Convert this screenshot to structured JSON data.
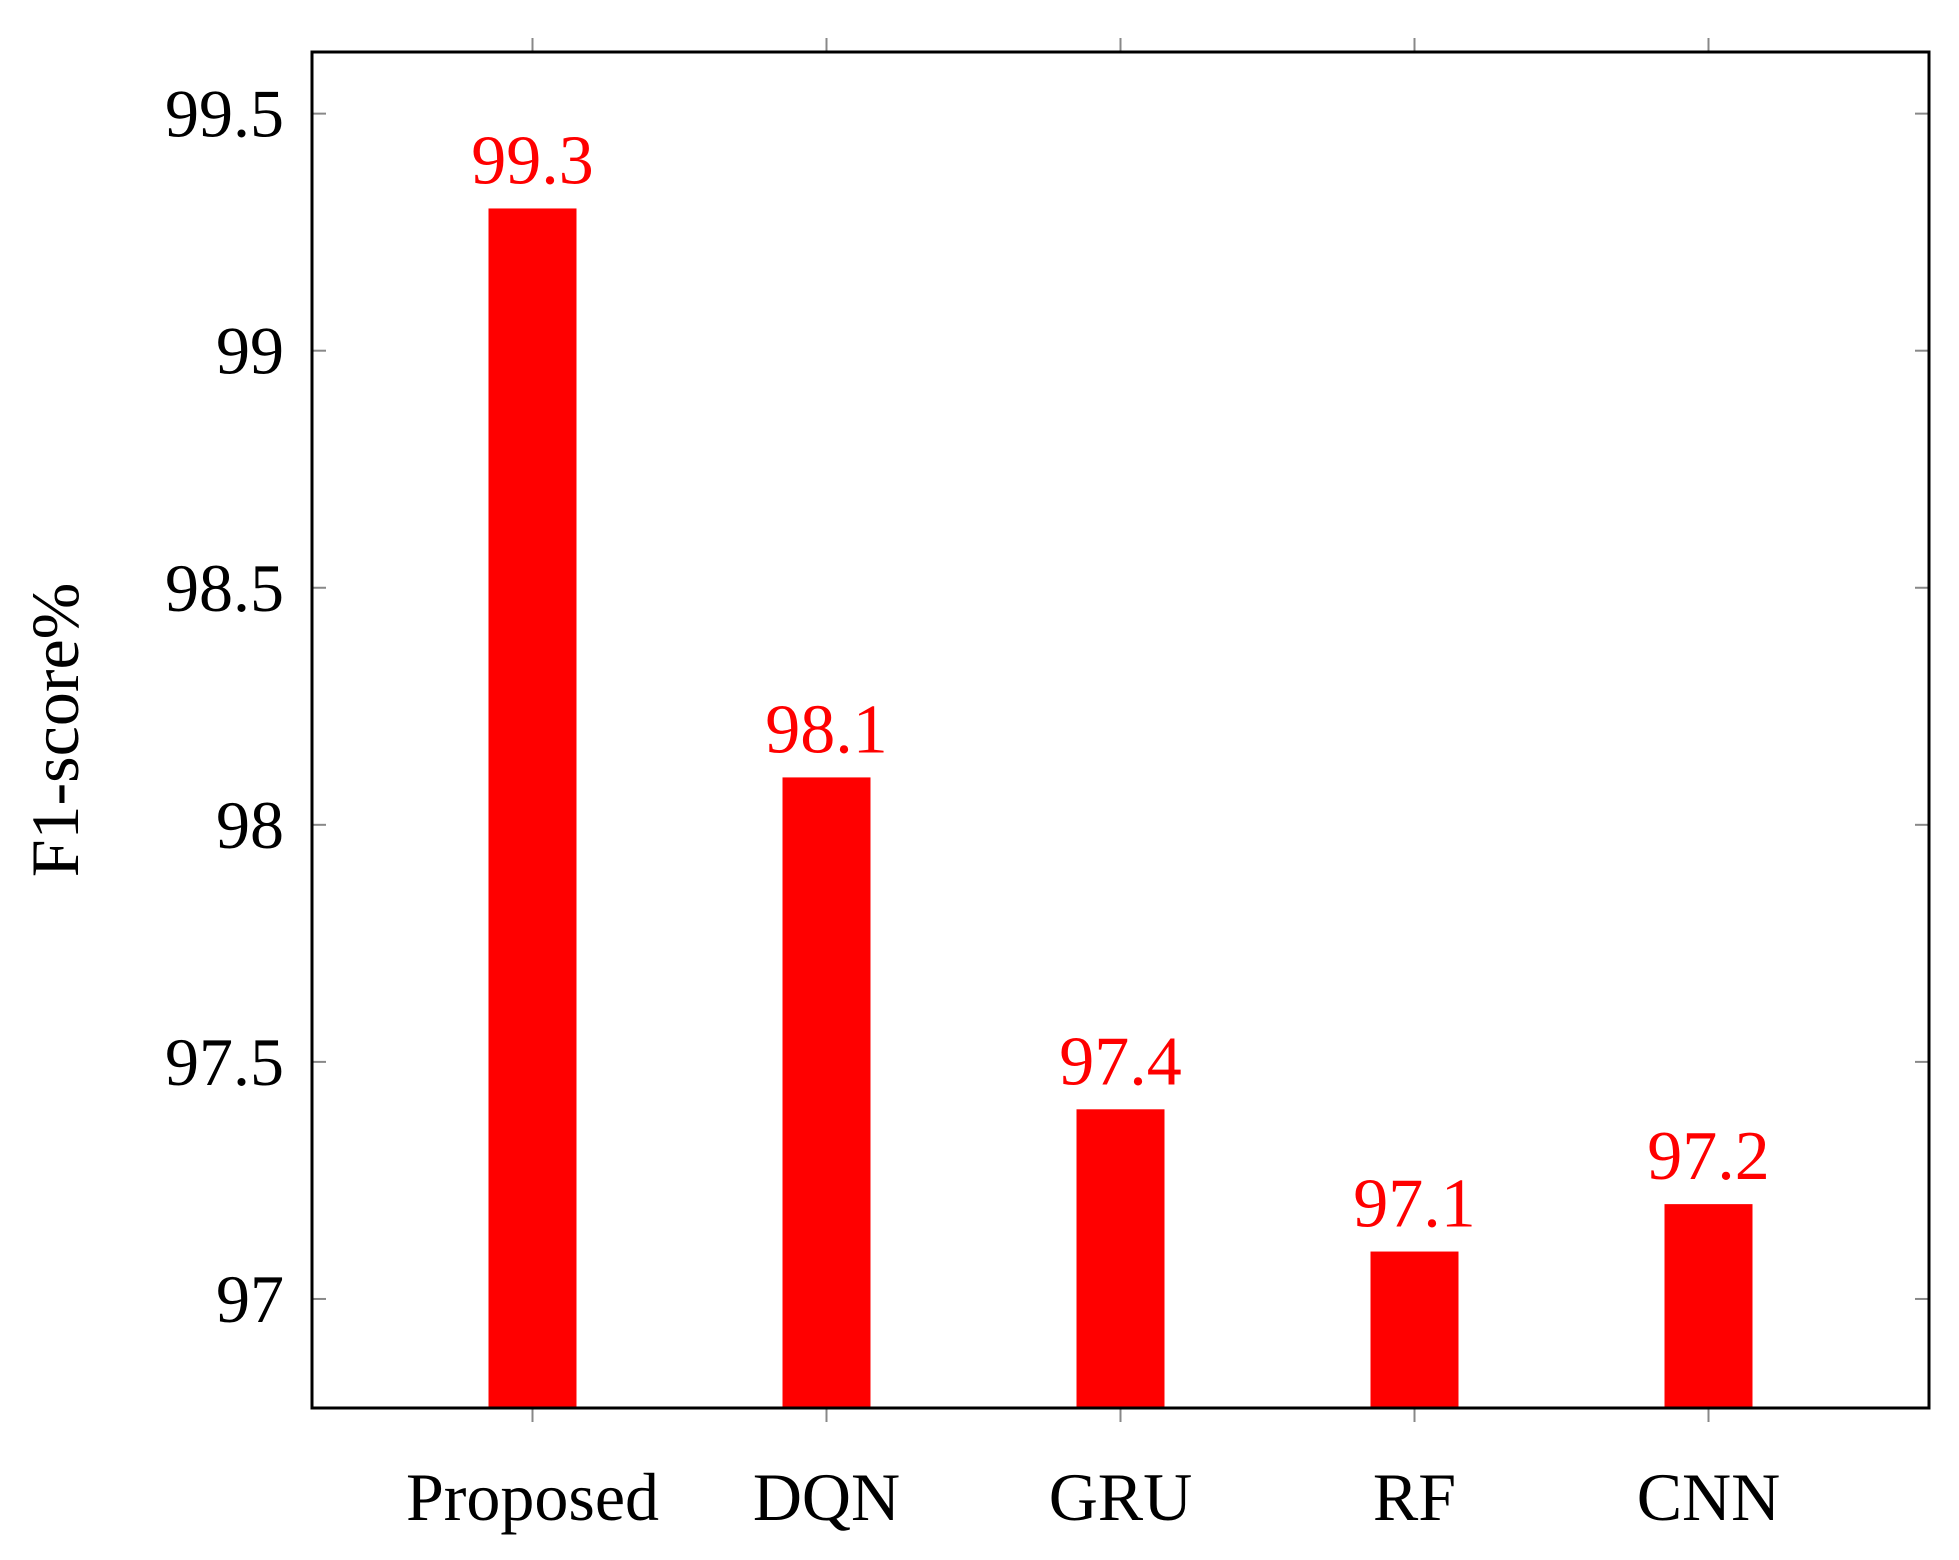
{
  "chart_data": {
    "type": "bar",
    "categories": [
      "Proposed",
      "DQN",
      "GRU",
      "RF",
      "CNN"
    ],
    "values": [
      99.3,
      98.1,
      97.4,
      97.1,
      97.2
    ],
    "value_labels": [
      "99.3",
      "98.1",
      "97.4",
      "97.1",
      "97.2"
    ],
    "title": "",
    "xlabel": "",
    "ylabel": "F1-score%",
    "ylim": [
      96.77,
      99.63
    ],
    "yticks": [
      97,
      97.5,
      98,
      98.5,
      99,
      99.5
    ],
    "ytick_labels": [
      "97",
      "97.5",
      "98",
      "98.5",
      "99",
      "99.5"
    ],
    "bar_color": "#ff0000",
    "label_color": "#ff0000",
    "grid": false,
    "legend": "none"
  }
}
